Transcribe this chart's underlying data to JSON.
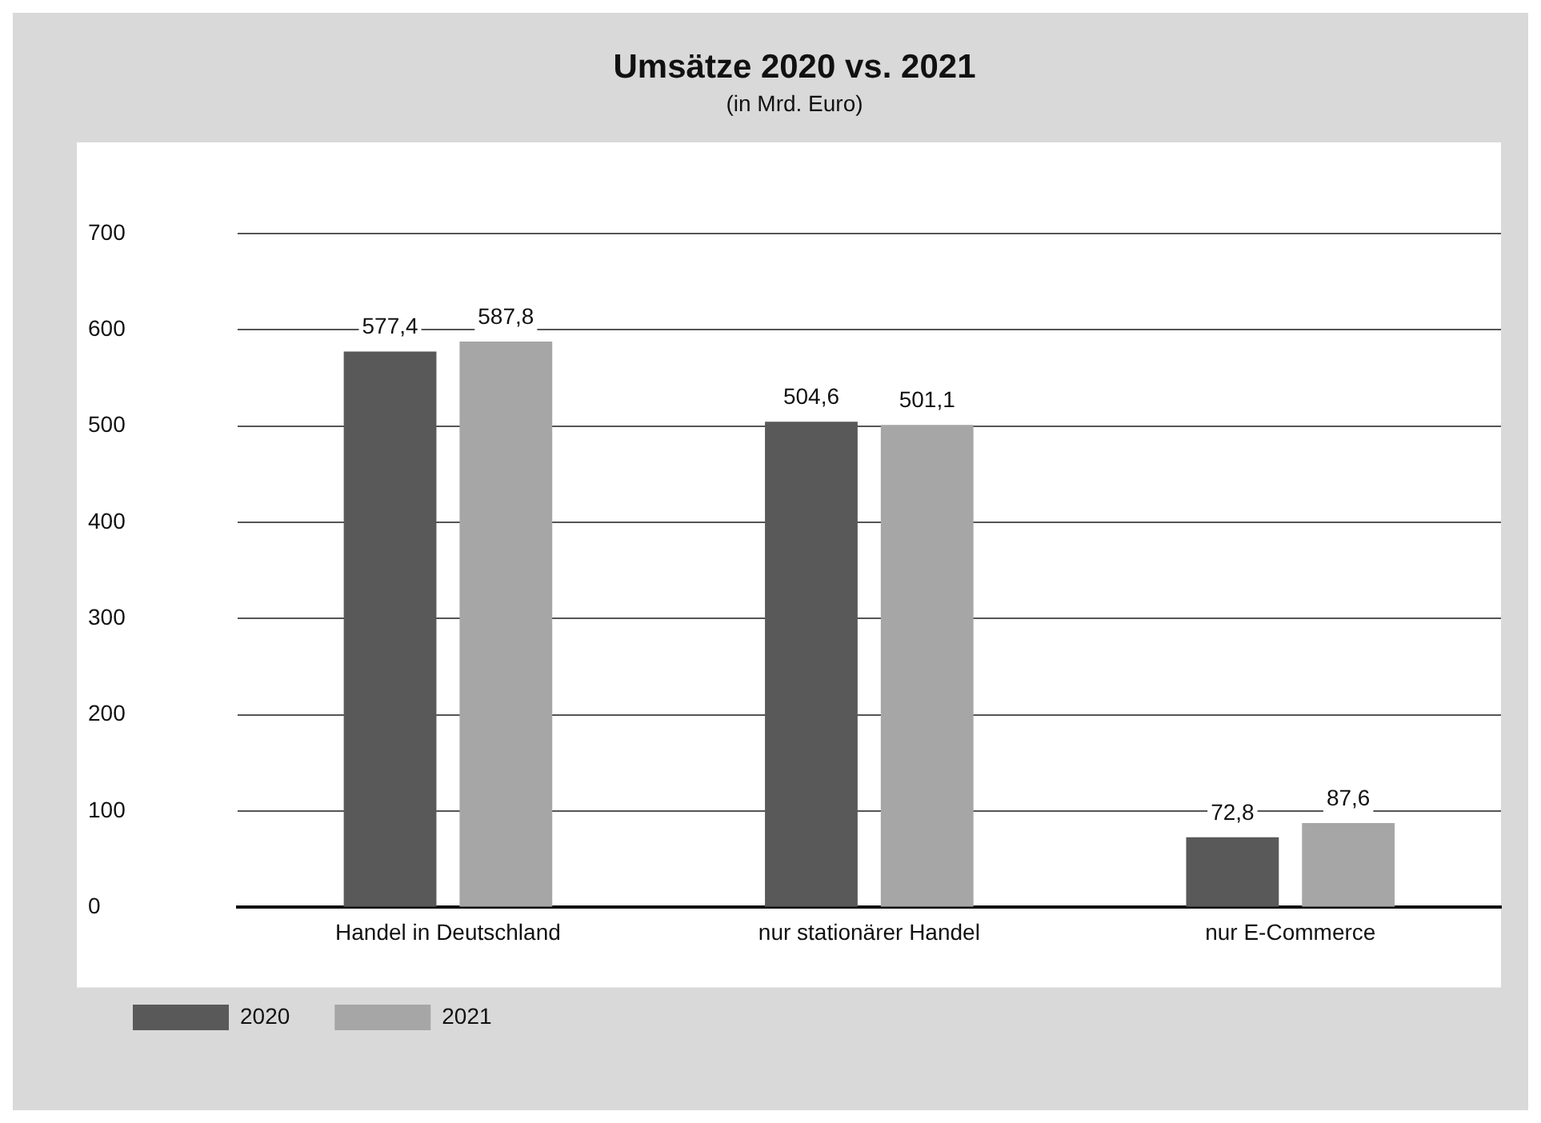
{
  "chart_data": {
    "type": "bar",
    "title": "Umsätze 2020 vs. 2021",
    "subtitle": "(in Mrd. Euro)",
    "categories": [
      "Handel in Deutschland",
      "nur stationärer Handel",
      "nur E-Commerce"
    ],
    "series": [
      {
        "name": "2020",
        "color": "#595959",
        "values": [
          577.4,
          504.6,
          72.8
        ],
        "value_labels": [
          "577,4",
          "504,6",
          "72,8"
        ]
      },
      {
        "name": "2021",
        "color": "#a6a6a6",
        "values": [
          587.8,
          501.1,
          87.6
        ],
        "value_labels": [
          "587,8",
          "501,1",
          "87,6"
        ]
      }
    ],
    "ylim": [
      0,
      700
    ],
    "yticks": [
      0,
      100,
      200,
      300,
      400,
      500,
      600,
      700
    ],
    "grid": "y",
    "legend": "bottom left"
  }
}
